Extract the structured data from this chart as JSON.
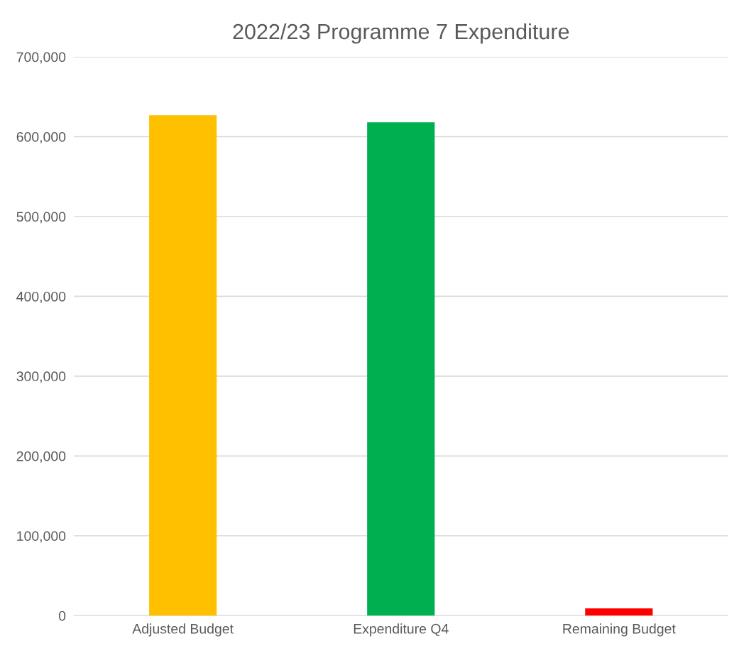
{
  "chart_data": {
    "type": "bar",
    "title": "2022/23 Programme 7 Expenditure",
    "categories": [
      "Adjusted Budget",
      "Expenditure Q4",
      "Remaining Budget"
    ],
    "values": [
      627000,
      618000,
      9000
    ],
    "colors": [
      "#ffc000",
      "#00b050",
      "#ff0000"
    ],
    "ylim": [
      0,
      700000
    ],
    "yticks": [
      {
        "value": 0,
        "label": "0"
      },
      {
        "value": 100000,
        "label": "100,000"
      },
      {
        "value": 200000,
        "label": "200,000"
      },
      {
        "value": 300000,
        "label": "300,000"
      },
      {
        "value": 400000,
        "label": "400,000"
      },
      {
        "value": 500000,
        "label": "500,000"
      },
      {
        "value": 600000,
        "label": "600,000"
      },
      {
        "value": 700000,
        "label": "700,000"
      }
    ],
    "grid": "y"
  }
}
